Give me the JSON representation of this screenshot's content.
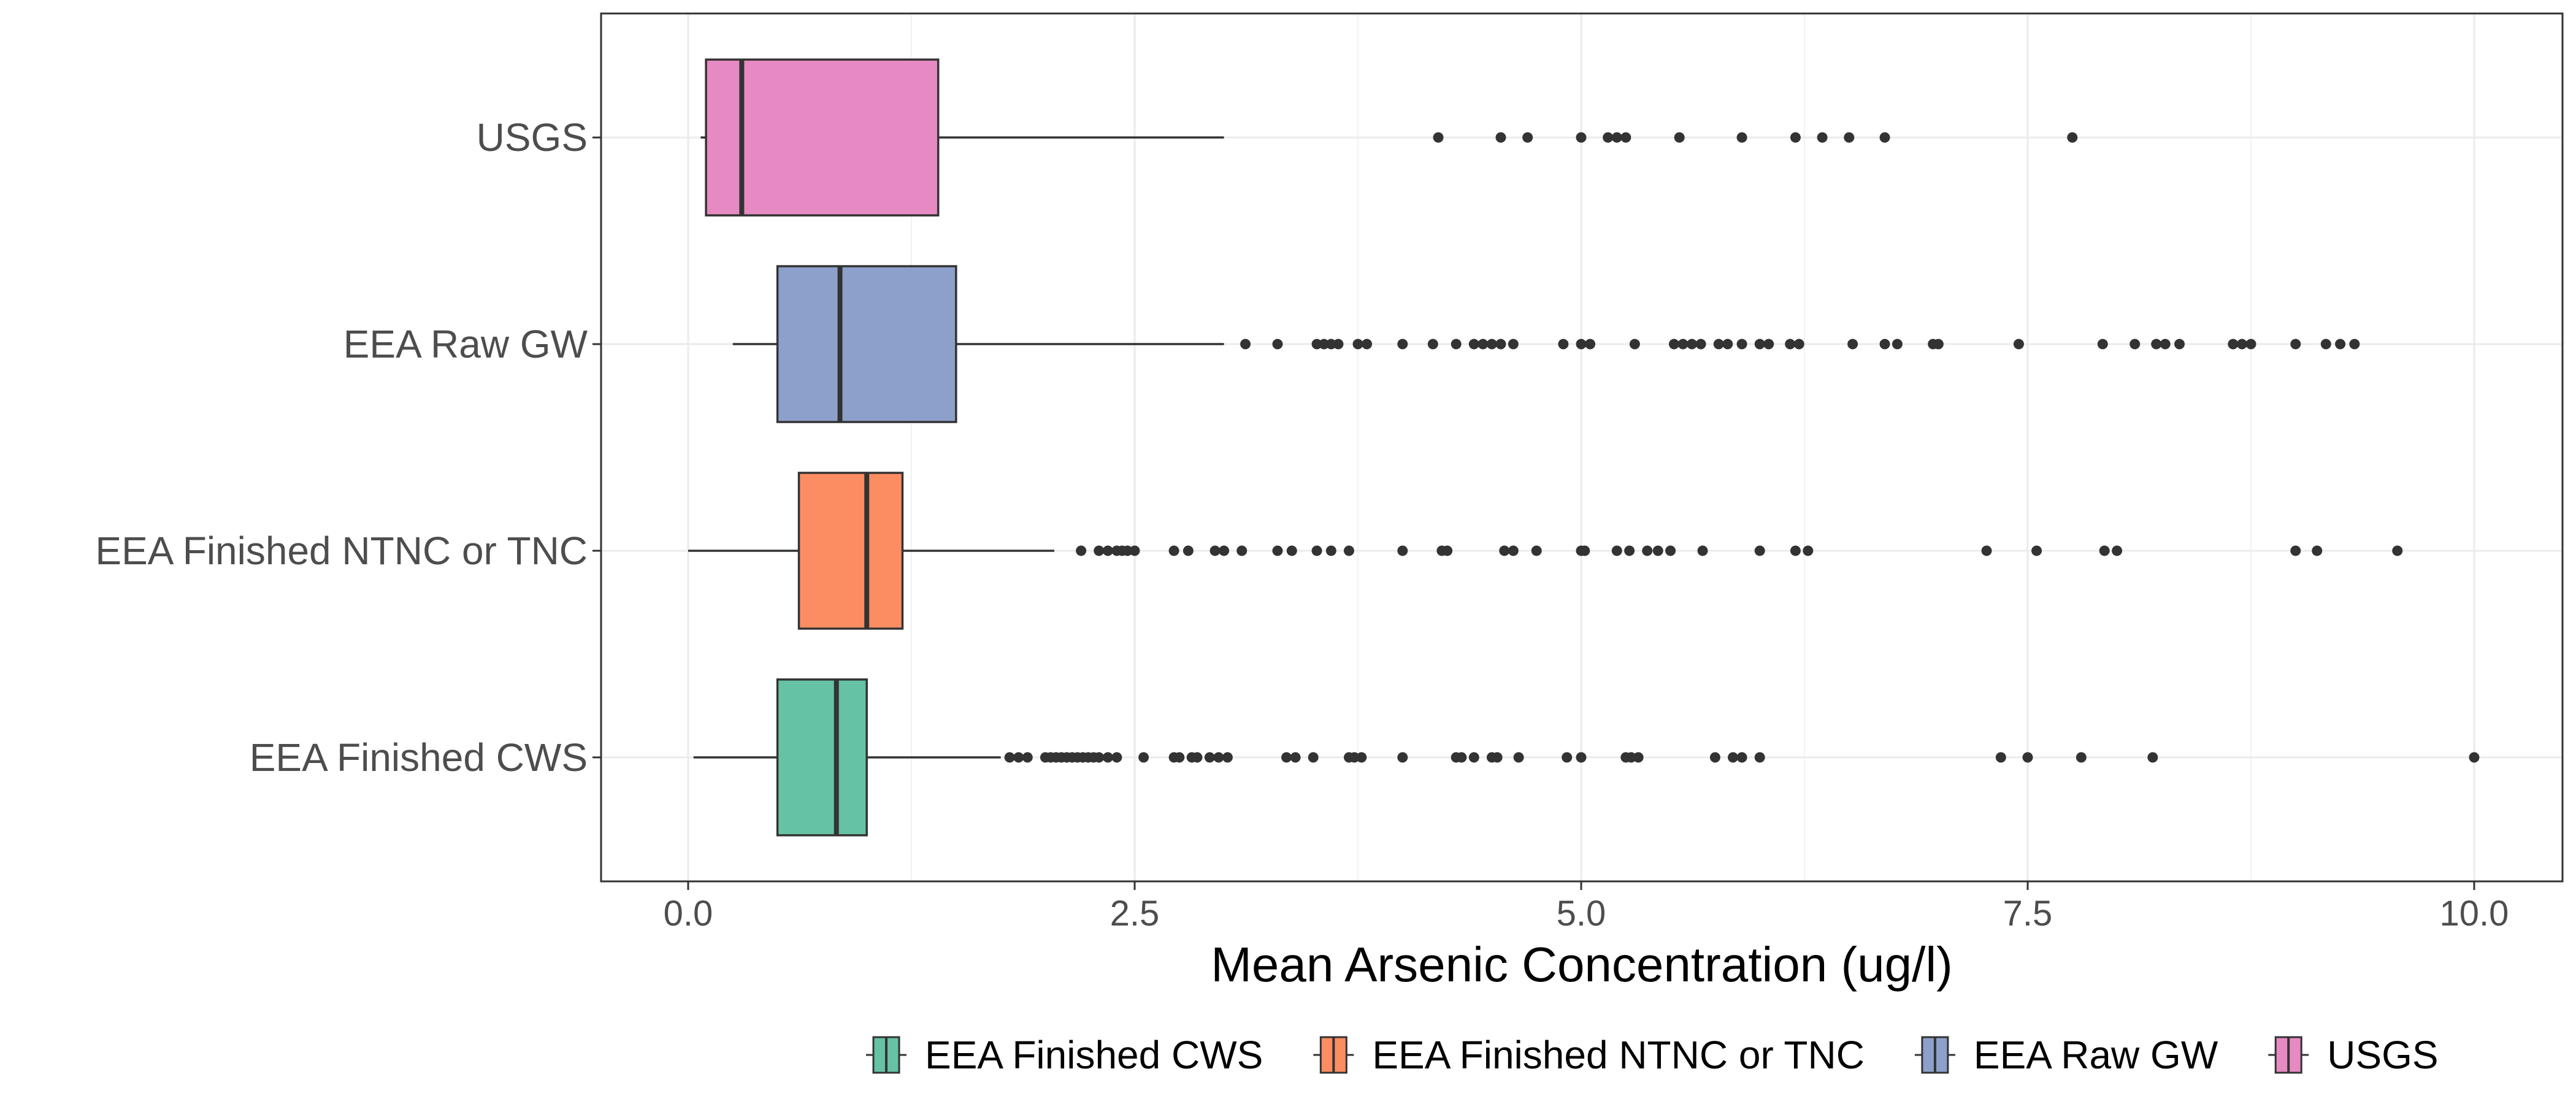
{
  "chart_data": {
    "type": "boxplot",
    "orientation": "horizontal",
    "title": "",
    "xlabel": "Mean Arsenic Concentration (ug/l)",
    "ylabel": "",
    "xlim": [
      -0.2,
      10.25
    ],
    "x_ticks": [
      0.0,
      2.5,
      5.0,
      7.5,
      10.0
    ],
    "x_tick_labels": [
      "0.0",
      "2.5",
      "5.0",
      "7.5",
      "10.0"
    ],
    "grid": true,
    "legend_position": "bottom",
    "categories": [
      "EEA Finished CWS",
      "EEA Finished NTNC or TNC",
      "EEA Raw GW",
      "USGS"
    ],
    "series": [
      {
        "name": "EEA Finished CWS",
        "color": "#66c2a5",
        "whisker_low": 0.03,
        "q1": 0.5,
        "median": 0.83,
        "q3": 1.0,
        "whisker_high": 1.75,
        "outliers": [
          1.8,
          1.85,
          1.9,
          2.0,
          2.03,
          2.06,
          2.09,
          2.12,
          2.15,
          2.18,
          2.21,
          2.24,
          2.27,
          2.3,
          2.35,
          2.4,
          2.55,
          2.72,
          2.75,
          2.82,
          2.85,
          2.92,
          2.97,
          3.02,
          3.35,
          3.4,
          3.5,
          3.7,
          3.73,
          3.77,
          4.0,
          4.3,
          4.33,
          4.4,
          4.5,
          4.53,
          4.65,
          4.92,
          5.0,
          5.25,
          5.28,
          5.32,
          5.75,
          5.85,
          5.9,
          6.0,
          7.35,
          7.5,
          7.8,
          8.2,
          10.0
        ]
      },
      {
        "name": "EEA Finished NTNC or TNC",
        "color": "#fc8d62",
        "whisker_low": 0.0,
        "q1": 0.62,
        "median": 1.0,
        "q3": 1.2,
        "whisker_high": 2.05,
        "outliers": [
          2.2,
          2.3,
          2.35,
          2.4,
          2.43,
          2.46,
          2.5,
          2.72,
          2.8,
          2.95,
          3.0,
          3.1,
          3.3,
          3.38,
          3.52,
          3.6,
          3.7,
          4.0,
          4.22,
          4.25,
          4.57,
          4.62,
          4.75,
          5.0,
          5.02,
          5.2,
          5.27,
          5.37,
          5.43,
          5.5,
          5.68,
          6.0,
          6.2,
          6.27,
          7.27,
          7.55,
          7.93,
          8.0,
          9.0,
          9.12,
          9.57
        ]
      },
      {
        "name": "EEA Raw GW",
        "color": "#8da0cb",
        "whisker_low": 0.25,
        "q1": 0.5,
        "median": 0.85,
        "q3": 1.5,
        "whisker_high": 3.0,
        "outliers": [
          3.12,
          3.3,
          3.52,
          3.56,
          3.6,
          3.64,
          3.75,
          3.8,
          4.0,
          4.17,
          4.3,
          4.4,
          4.45,
          4.5,
          4.55,
          4.62,
          4.9,
          5.0,
          5.05,
          5.3,
          5.52,
          5.57,
          5.62,
          5.67,
          5.77,
          5.82,
          5.9,
          6.0,
          6.05,
          6.17,
          6.22,
          6.52,
          6.7,
          6.77,
          6.97,
          7.0,
          7.45,
          7.92,
          8.1,
          8.22,
          8.27,
          8.35,
          8.65,
          8.7,
          8.75,
          9.0,
          9.17,
          9.25,
          9.33
        ]
      },
      {
        "name": "USGS",
        "color": "#e78ac3",
        "whisker_low": 0.07,
        "q1": 0.1,
        "median": 0.3,
        "q3": 1.4,
        "whisker_high": 3.0,
        "outliers": [
          4.2,
          4.55,
          4.7,
          5.0,
          5.15,
          5.2,
          5.25,
          5.55,
          5.9,
          6.2,
          6.35,
          6.5,
          6.7,
          7.75
        ]
      }
    ]
  }
}
